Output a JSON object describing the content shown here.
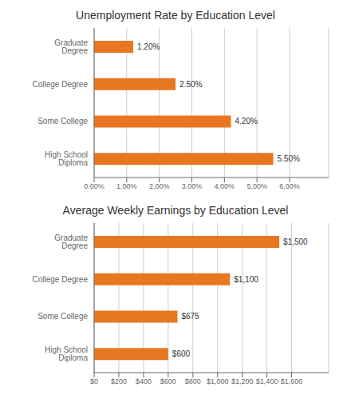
{
  "chart_data": [
    {
      "type": "bar",
      "title": "Unemployment Rate by Education Level",
      "categories": [
        "Graduate Degree",
        "College Degree",
        "Some College",
        "High School Diploma"
      ],
      "values": [
        1.2,
        2.5,
        4.2,
        5.5
      ],
      "value_labels": [
        "1.20%",
        "2.50%",
        "4.20%",
        "5.50%"
      ],
      "color": "#E87722",
      "orientation": "horizontal",
      "xlim": [
        0,
        7.2
      ],
      "xticks": [
        {
          "value": 0,
          "label": "0.00%"
        },
        {
          "value": 1.0,
          "label": "1.00%"
        },
        {
          "value": 2.0,
          "label": "2.00%"
        },
        {
          "value": 3.0,
          "label": "3.00%"
        },
        {
          "value": 4.0,
          "label": "4.00%"
        },
        {
          "value": 5.0,
          "label": "5.00%"
        },
        {
          "value": 6.0,
          "label": "6.00%"
        }
      ],
      "grid": "x",
      "data_labels": true
    },
    {
      "type": "bar",
      "title": "Average Weekly Earnings by Education Level",
      "categories": [
        "Graduate Degree",
        "College Degree",
        "Some College",
        "High School Diploma"
      ],
      "values": [
        1500,
        1100,
        675,
        600
      ],
      "value_labels": [
        "$1,500",
        "$1,100",
        "$675",
        "$600"
      ],
      "color": "#E87722",
      "orientation": "horizontal",
      "xlim": [
        0,
        1900
      ],
      "xticks": [
        {
          "value": 0,
          "label": "$0"
        },
        {
          "value": 200,
          "label": "$200"
        },
        {
          "value": 400,
          "label": "$400"
        },
        {
          "value": 600,
          "label": "$600"
        },
        {
          "value": 800,
          "label": "$800"
        },
        {
          "value": 1000,
          "label": "$1,000"
        },
        {
          "value": 1200,
          "label": "$1,200"
        },
        {
          "value": 1400,
          "label": "$1,400"
        },
        {
          "value": 1600,
          "label": "$1,600"
        }
      ],
      "grid": "x",
      "data_labels": true
    }
  ]
}
